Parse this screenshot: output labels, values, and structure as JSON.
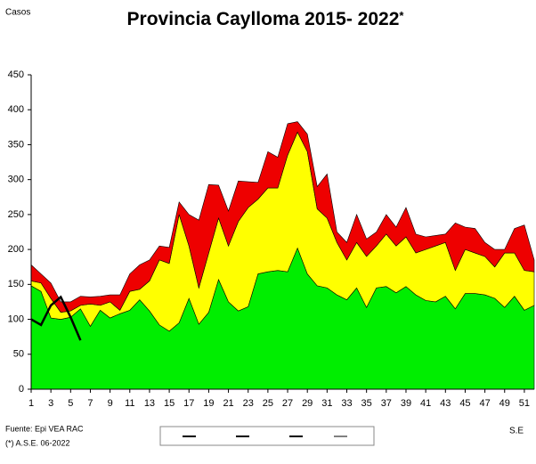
{
  "chart_data": {
    "type": "stacked-area",
    "title": "Provincia Caylloma 2015- 2022",
    "title_mark": "*",
    "y_label": "Casos",
    "x_label": "S.E",
    "source": "Fuente: Epi VEA RAC",
    "note": "(*) A.S.E. 06-2022",
    "x": [
      1,
      2,
      3,
      4,
      5,
      6,
      7,
      8,
      9,
      10,
      11,
      12,
      13,
      14,
      15,
      16,
      17,
      18,
      19,
      20,
      21,
      22,
      23,
      24,
      25,
      26,
      27,
      28,
      29,
      30,
      31,
      32,
      33,
      34,
      35,
      36,
      37,
      38,
      39,
      40,
      41,
      42,
      43,
      44,
      45,
      46,
      47,
      48,
      49,
      50,
      51,
      52
    ],
    "xlim": [
      1,
      52
    ],
    "xticks": [
      1,
      3,
      5,
      7,
      9,
      11,
      13,
      15,
      17,
      19,
      21,
      23,
      25,
      27,
      29,
      31,
      33,
      35,
      37,
      39,
      41,
      43,
      45,
      47,
      49,
      51
    ],
    "ylim": [
      0,
      450
    ],
    "yticks": [
      0,
      50,
      100,
      150,
      200,
      250,
      300,
      350,
      400,
      450
    ],
    "series": [
      {
        "color": "#00ee00",
        "values": [
          148,
          140,
          102,
          100,
          103,
          115,
          90,
          113,
          102,
          108,
          113,
          128,
          112,
          92,
          83,
          95,
          130,
          93,
          110,
          157,
          125,
          112,
          118,
          165,
          168,
          170,
          168,
          202,
          165,
          148,
          145,
          135,
          128,
          145,
          117,
          145,
          147,
          138,
          147,
          135,
          127,
          125,
          133,
          115,
          137,
          137,
          135,
          130,
          117,
          133,
          113,
          120
        ]
      },
      {
        "color": "#ffff00",
        "values": [
          7,
          12,
          28,
          10,
          9,
          5,
          32,
          7,
          23,
          5,
          27,
          15,
          43,
          93,
          97,
          155,
          75,
          52,
          85,
          88,
          80,
          128,
          142,
          107,
          120,
          118,
          167,
          166,
          175,
          110,
          100,
          75,
          57,
          65,
          73,
          60,
          75,
          67,
          71,
          60,
          73,
          80,
          77,
          55,
          63,
          58,
          55,
          45,
          78,
          62,
          57,
          48
        ]
      },
      {
        "color": "#ee0000",
        "values": [
          23,
          13,
          22,
          15,
          13,
          13,
          10,
          13,
          10,
          22,
          25,
          35,
          30,
          20,
          23,
          18,
          45,
          97,
          98,
          47,
          50,
          58,
          37,
          24,
          52,
          44,
          45,
          15,
          25,
          32,
          63,
          15,
          25,
          40,
          25,
          20,
          28,
          27,
          42,
          27,
          18,
          15,
          12,
          68,
          32,
          35,
          20,
          25,
          5,
          35,
          65,
          17
        ]
      }
    ],
    "line": {
      "color": "#000000",
      "values": [
        100,
        92,
        120,
        132,
        103,
        70,
        null,
        null,
        null,
        null,
        null,
        null,
        null,
        null,
        null,
        null,
        null,
        null,
        null,
        null,
        null,
        null,
        null,
        null,
        null,
        null,
        null,
        null,
        null,
        null,
        null,
        null,
        null,
        null,
        null,
        null,
        null,
        null,
        null,
        null,
        null,
        null,
        null,
        null,
        null,
        null,
        null,
        null,
        null,
        null,
        null,
        null
      ]
    }
  }
}
